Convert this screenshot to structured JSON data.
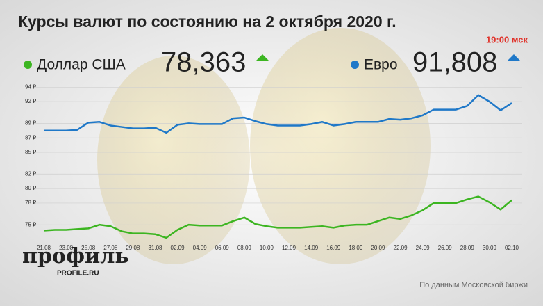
{
  "chart_data": {
    "type": "line",
    "title": "Курсы валют по состоянию на 2 октября 2020 г.",
    "subtitle": "19:00 мск",
    "source": "По данным Московской биржи",
    "logo": "профиль",
    "logo_url": "PROFILE.RU",
    "categories": [
      "21.08",
      null,
      "23.08",
      null,
      "25.08",
      null,
      "27.08",
      null,
      "29.08",
      null,
      "31.08",
      null,
      "02.09",
      null,
      "04.09",
      null,
      "06.09",
      null,
      "08.09",
      null,
      "10.09",
      null,
      "12.09",
      null,
      "14.09",
      null,
      "16.09",
      null,
      "18.09",
      null,
      "20.09",
      null,
      "22.09",
      null,
      "24.09",
      null,
      "26.09",
      null,
      "28.09",
      null,
      "30.09",
      null,
      "02.10"
    ],
    "series": [
      {
        "name": "Доллар США",
        "current": "78,363",
        "color": "#3cb521",
        "values": [
          74.2,
          74.3,
          74.3,
          74.4,
          74.5,
          75.0,
          74.8,
          74.1,
          73.8,
          73.8,
          73.7,
          73.2,
          74.3,
          75.0,
          74.9,
          74.9,
          74.9,
          75.5,
          76.0,
          75.1,
          74.8,
          74.6,
          74.6,
          74.6,
          74.7,
          74.8,
          74.6,
          74.9,
          75.0,
          75.0,
          75.5,
          76.0,
          75.8,
          76.3,
          77.0,
          78.0,
          78.0,
          78.0,
          78.5,
          78.9,
          78.1,
          77.1,
          78.4
        ]
      },
      {
        "name": "Евро",
        "current": "91,808",
        "color": "#1f78c8",
        "values": [
          88.0,
          88.0,
          88.0,
          88.1,
          89.1,
          89.2,
          88.7,
          88.5,
          88.3,
          88.3,
          88.4,
          87.7,
          88.8,
          89.0,
          88.9,
          88.9,
          88.9,
          89.7,
          89.8,
          89.3,
          88.9,
          88.7,
          88.7,
          88.7,
          88.9,
          89.2,
          88.7,
          88.9,
          89.2,
          89.2,
          89.2,
          89.6,
          89.5,
          89.7,
          90.1,
          90.9,
          90.9,
          90.9,
          91.4,
          92.9,
          92.0,
          90.8,
          91.8
        ]
      }
    ],
    "ylim": [
      73,
      94.7
    ],
    "yticks": [
      {
        "value": 94,
        "label": "94 ₽"
      },
      {
        "value": 92,
        "label": "92 ₽"
      },
      {
        "value": 89,
        "label": "89 ₽"
      },
      {
        "value": 87,
        "label": "87 ₽"
      },
      {
        "value": 85,
        "label": "85 ₽"
      },
      {
        "value": 82,
        "label": "82 ₽"
      },
      {
        "value": 80,
        "label": "80 ₽"
      },
      {
        "value": 78,
        "label": "78 ₽"
      },
      {
        "value": 75,
        "label": "75 ₽"
      }
    ],
    "grid": true
  }
}
